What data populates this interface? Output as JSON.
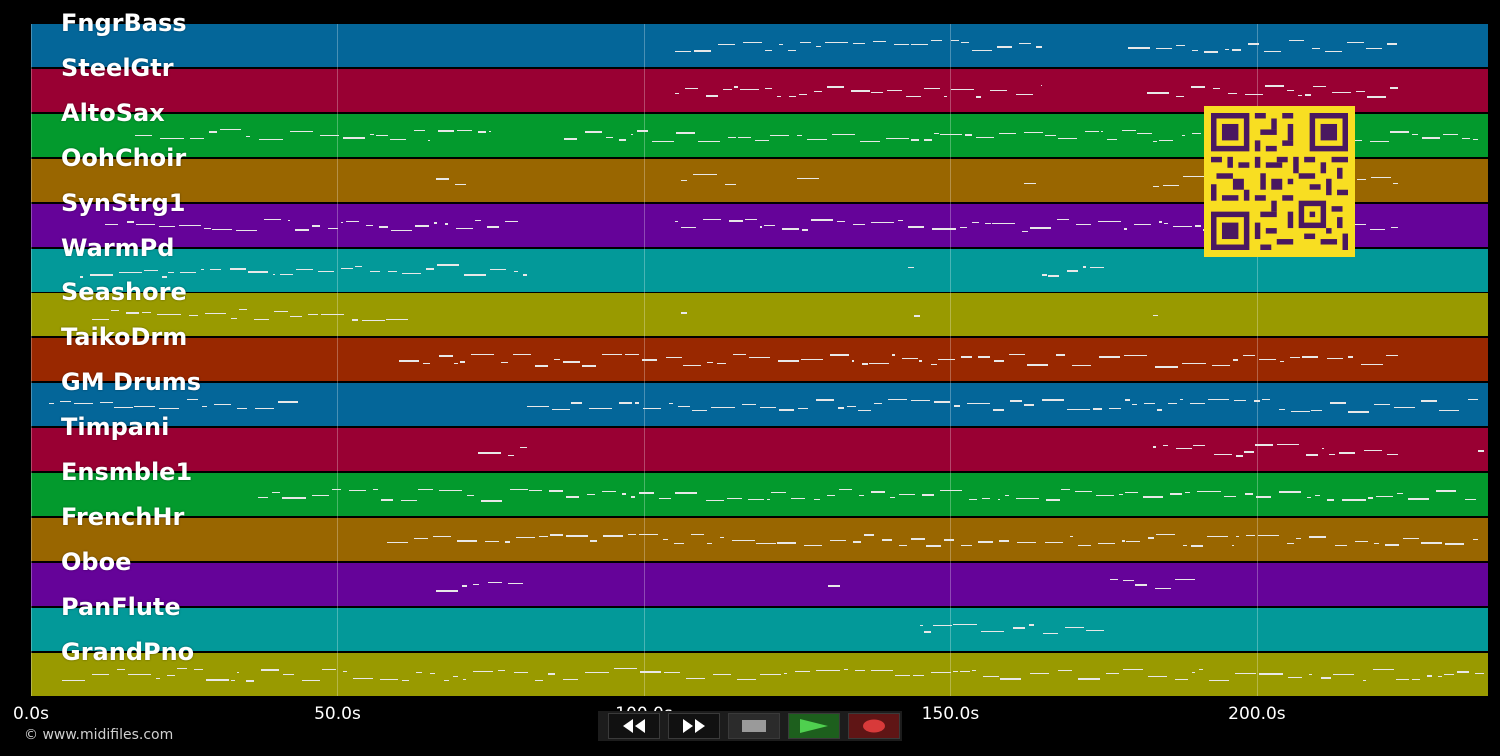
{
  "tracks": [
    {
      "name": "FngrBass",
      "color": "#046699"
    },
    {
      "name": "SteelGtr",
      "color": "#990033"
    },
    {
      "name": "AltoSax",
      "color": "#039a2d"
    },
    {
      "name": "OohChoir",
      "color": "#996600"
    },
    {
      "name": "SynStrg1",
      "color": "#650399"
    },
    {
      "name": "WarmPd",
      "color": "#039999"
    },
    {
      "name": "Seashore",
      "color": "#999a00"
    },
    {
      "name": "TaikoDrm",
      "color": "#992800"
    },
    {
      "name": "GM Drums",
      "color": "#046699"
    },
    {
      "name": "Timpani",
      "color": "#990033"
    },
    {
      "name": "Ensmble1",
      "color": "#039a2d"
    },
    {
      "name": "FrenchHr",
      "color": "#996600"
    },
    {
      "name": "Oboe",
      "color": "#650399"
    },
    {
      "name": "PanFlute",
      "color": "#039999"
    },
    {
      "name": "GrandPno",
      "color": "#999a00"
    }
  ],
  "timeline": {
    "max_seconds": 237.7,
    "ticks": [
      {
        "seconds": 0,
        "label": "0.0s"
      },
      {
        "seconds": 50,
        "label": "50.0s"
      },
      {
        "seconds": 100,
        "label": "100.0s"
      },
      {
        "seconds": 150,
        "label": "150.0s"
      },
      {
        "seconds": 200,
        "label": "200.0s"
      }
    ]
  },
  "note_spans": [
    [
      [
        105,
        165
      ],
      [
        179,
        223
      ]
    ],
    [
      [
        105,
        165
      ],
      [
        182,
        223
      ]
    ],
    [
      [
        17,
        75
      ],
      [
        87,
        236
      ]
    ],
    [
      [
        66,
        71
      ],
      [
        106,
        115
      ],
      [
        125,
        129
      ],
      [
        162,
        164
      ],
      [
        183,
        223
      ]
    ],
    [
      [
        12,
        80
      ],
      [
        105,
        223
      ]
    ],
    [
      [
        8,
        81
      ],
      [
        143,
        144
      ],
      [
        165,
        175
      ]
    ],
    [
      [
        10,
        62
      ],
      [
        106,
        107
      ],
      [
        144,
        145
      ],
      [
        183,
        184
      ]
    ],
    [
      [
        60,
        223
      ]
    ],
    [
      [
        3,
        44
      ],
      [
        81,
        236
      ]
    ],
    [
      [
        73,
        81
      ],
      [
        183,
        223
      ],
      [
        236,
        237
      ]
    ],
    [
      [
        37,
        236
      ]
    ],
    [
      [
        58,
        236
      ]
    ],
    [
      [
        66,
        81
      ],
      [
        130,
        132
      ],
      [
        176,
        191
      ]
    ],
    [
      [
        145,
        175
      ]
    ],
    [
      [
        5,
        237
      ]
    ]
  ],
  "copyright": "© www.midifiles.com",
  "controls": [
    {
      "name": "rewind",
      "icon": "rewind-icon"
    },
    {
      "name": "fast-forward",
      "icon": "fast-forward-icon"
    },
    {
      "name": "stop",
      "icon": "stop-icon"
    },
    {
      "name": "play",
      "icon": "play-icon"
    },
    {
      "name": "record",
      "icon": "record-icon"
    }
  ],
  "colors": {
    "qr_background": "#f8de22",
    "qr_foreground": "#4a1860",
    "note": "#e8e8e8"
  }
}
